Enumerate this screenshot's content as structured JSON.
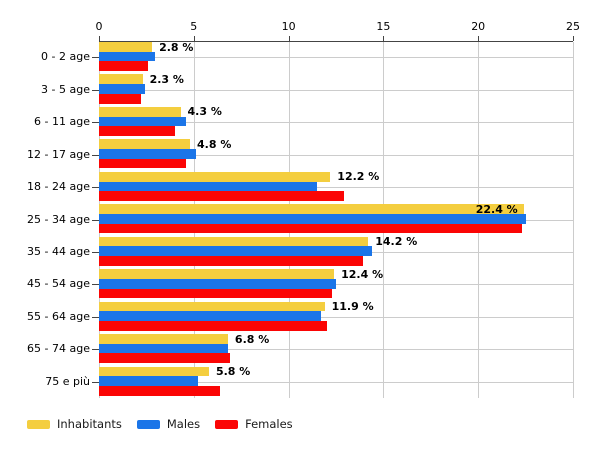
{
  "chart_data": {
    "type": "bar",
    "orientation": "horizontal",
    "title": "",
    "categories": [
      "0 - 2 age",
      "3 - 5 age",
      "6 - 11 age",
      "12 - 17 age",
      "18 - 24 age",
      "25 - 34 age",
      "35 - 44 age",
      "45 - 54 age",
      "55 - 64 age",
      "65 - 74 age",
      "75 e più"
    ],
    "series": [
      {
        "name": "Inhabitants",
        "color": "#F4CE3F",
        "values": [
          2.8,
          2.3,
          4.3,
          4.8,
          12.2,
          22.4,
          14.2,
          12.4,
          11.9,
          6.8,
          5.8
        ]
      },
      {
        "name": "Males",
        "color": "#1B75E8",
        "values": [
          2.95,
          2.45,
          4.6,
          5.1,
          11.5,
          22.5,
          14.4,
          12.5,
          11.7,
          6.8,
          5.2
        ]
      },
      {
        "name": "Females",
        "color": "#FB0505",
        "values": [
          2.6,
          2.2,
          4.0,
          4.6,
          12.9,
          22.3,
          13.9,
          12.3,
          12.0,
          6.9,
          6.4
        ]
      }
    ],
    "value_labels": [
      "2.8 %",
      "2.3 %",
      "4.3 %",
      "4.8 %",
      "12.2 %",
      "22.4 %",
      "14.2 %",
      "12.4 %",
      "11.9 %",
      "6.8 %",
      "5.8 %"
    ],
    "value_label_inside": [
      false,
      false,
      false,
      false,
      false,
      true,
      false,
      false,
      false,
      false,
      false
    ],
    "xlabel": "",
    "ylabel": "",
    "xlim": [
      0,
      25
    ],
    "x_ticks": [
      "0",
      "5",
      "10",
      "15",
      "20",
      "25"
    ],
    "grid": true,
    "legend_position": "bottom-left"
  },
  "colors": {
    "grid": "#cccccc",
    "axis": "#444444",
    "text": "#000000"
  }
}
